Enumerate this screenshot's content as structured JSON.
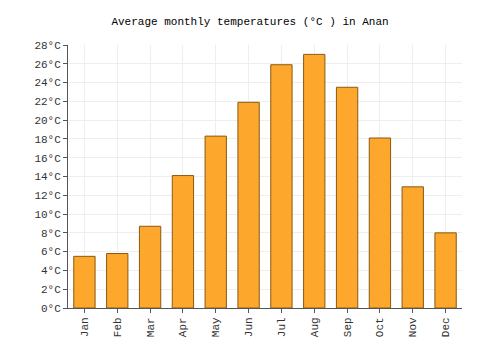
{
  "chart_data": {
    "type": "bar",
    "title": "Average monthly temperatures (°C ) in Anan",
    "categories": [
      "Jan",
      "Feb",
      "Mar",
      "Apr",
      "May",
      "Jun",
      "Jul",
      "Aug",
      "Sep",
      "Oct",
      "Nov",
      "Dec"
    ],
    "values": [
      5.5,
      5.8,
      8.7,
      14.1,
      18.3,
      21.9,
      25.9,
      27.0,
      23.5,
      18.1,
      12.9,
      8.0
    ],
    "color": "#fda72c",
    "ylim": [
      0,
      28
    ],
    "yticks": [
      {
        "value": 0,
        "label": "0°C"
      },
      {
        "value": 2,
        "label": "2°C"
      },
      {
        "value": 4,
        "label": "4°C"
      },
      {
        "value": 6,
        "label": "6°C"
      },
      {
        "value": 8,
        "label": "8°C"
      },
      {
        "value": 10,
        "label": "10°C"
      },
      {
        "value": 12,
        "label": "12°C"
      },
      {
        "value": 14,
        "label": "14°C"
      },
      {
        "value": 16,
        "label": "16°C"
      },
      {
        "value": 18,
        "label": "18°C"
      },
      {
        "value": 20,
        "label": "20°C"
      },
      {
        "value": 22,
        "label": "22°C"
      },
      {
        "value": 24,
        "label": "24°C"
      },
      {
        "value": 26,
        "label": "26°C"
      },
      {
        "value": 28,
        "label": "28°C"
      }
    ],
    "grid": true
  }
}
